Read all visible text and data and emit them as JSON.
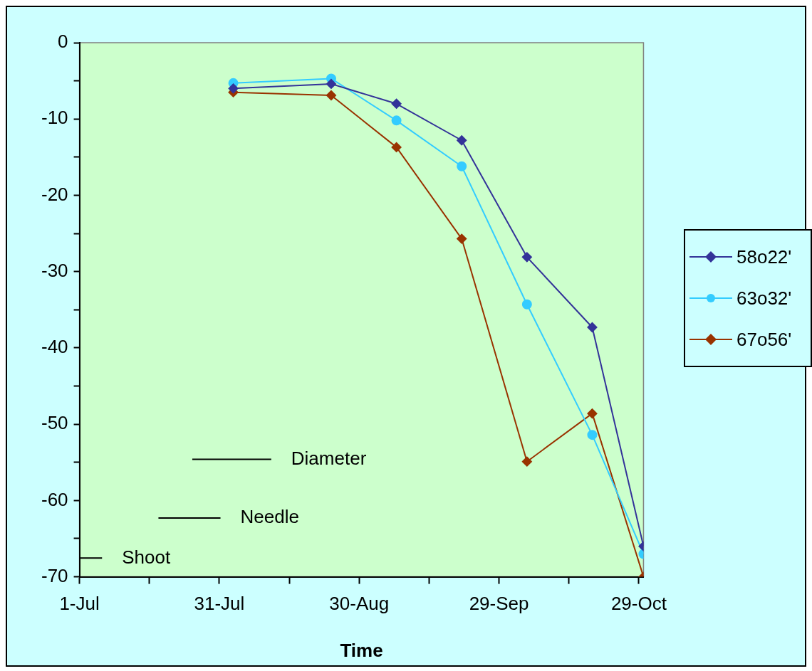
{
  "chart_data": {
    "type": "line",
    "xlabel": "Time",
    "x": [
      "--08-03",
      "--08-24",
      "--09-07",
      "--09-21",
      "--10-05",
      "--10-19",
      "--10-30"
    ],
    "series": [
      {
        "name": "58o22'",
        "color": "#333399",
        "marker": "diamond",
        "values": [
          -6.0,
          -5.4,
          -8.0,
          -12.8,
          -28.1,
          -37.3,
          -66
        ]
      },
      {
        "name": "63o32'",
        "color": "#33ccff",
        "marker": "circle",
        "values": [
          -5.3,
          -4.7,
          -10.2,
          -16.2,
          -34.3,
          -51.4,
          -67
        ]
      },
      {
        "name": "67o56'",
        "color": "#993300",
        "marker": "diamond",
        "values": [
          -6.5,
          -6.9,
          -13.7,
          -25.7,
          -54.9,
          -48.6,
          -70
        ]
      }
    ],
    "xlim": [
      "--07-01",
      "--10-30"
    ],
    "xticks": [
      {
        "value": "--07-01",
        "label": "1-Jul"
      },
      {
        "value": "--07-16",
        "label": null
      },
      {
        "value": "--07-31",
        "label": "31-Jul"
      },
      {
        "value": "--08-15",
        "label": null
      },
      {
        "value": "--08-30",
        "label": "30-Aug"
      },
      {
        "value": "--09-14",
        "label": null
      },
      {
        "value": "--09-29",
        "label": "29-Sep"
      },
      {
        "value": "--10-14",
        "label": null
      },
      {
        "value": "--10-29",
        "label": "29-Oct"
      }
    ],
    "ylim": [
      -70,
      0
    ],
    "yticks": [
      0,
      {
        "value": -5,
        "label": null
      },
      -10,
      {
        "value": -15,
        "label": null
      },
      -20,
      {
        "value": -25,
        "label": null
      },
      -30,
      {
        "value": -35,
        "label": null
      },
      -40,
      {
        "value": -45,
        "label": null
      },
      -50,
      {
        "value": -55,
        "label": null
      },
      -60,
      {
        "value": -65,
        "label": null
      },
      -70
    ],
    "grid": false,
    "legend": "right",
    "line_style": "solid",
    "annotations": [
      "Diameter",
      "Needle",
      "Shoot"
    ]
  }
}
